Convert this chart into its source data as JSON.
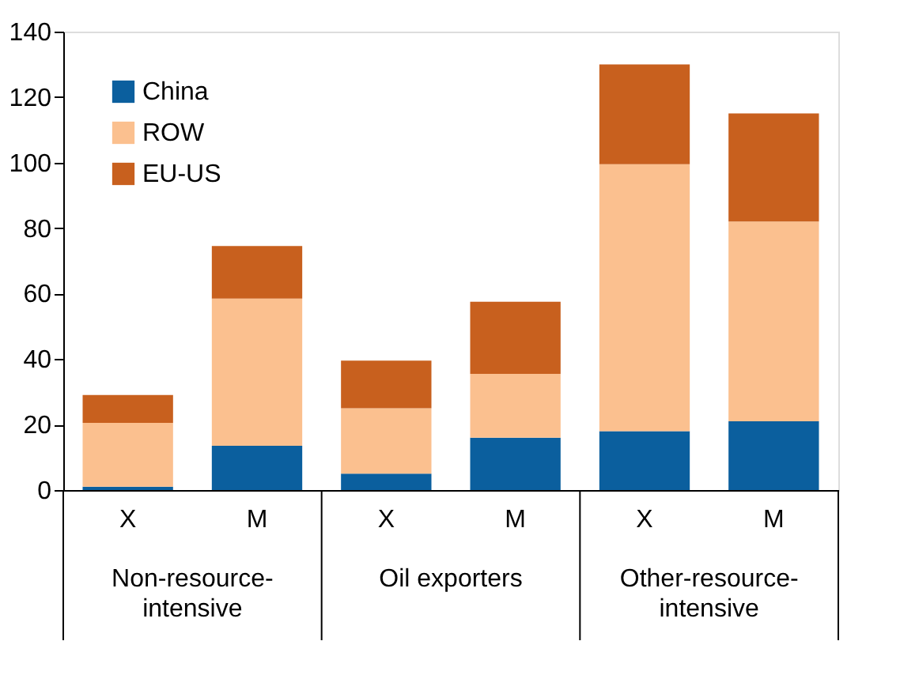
{
  "chart_data": {
    "type": "bar",
    "stacked": true,
    "categories": [
      "X",
      "M",
      "X",
      "M",
      "X",
      "M"
    ],
    "series": [
      {
        "name": "China",
        "color": "#0b5f9e",
        "values": [
          1,
          13.5,
          5,
          16,
          18,
          21
        ]
      },
      {
        "name": "ROW",
        "color": "#fbc08f",
        "values": [
          19.5,
          45,
          20,
          19.5,
          81.5,
          61
        ]
      },
      {
        "name": "EU-US",
        "color": "#c8601e",
        "values": [
          8.5,
          16,
          14.5,
          22,
          30.5,
          33
        ]
      }
    ],
    "annotations": [
      "Non-resource-intensive",
      "Oil exporters",
      "Other-resource-intensive"
    ],
    "ylim": [
      0,
      140
    ],
    "yticks": [
      0,
      20,
      40,
      60,
      80,
      100,
      120,
      140
    ],
    "grid": false,
    "legend": "top left"
  }
}
